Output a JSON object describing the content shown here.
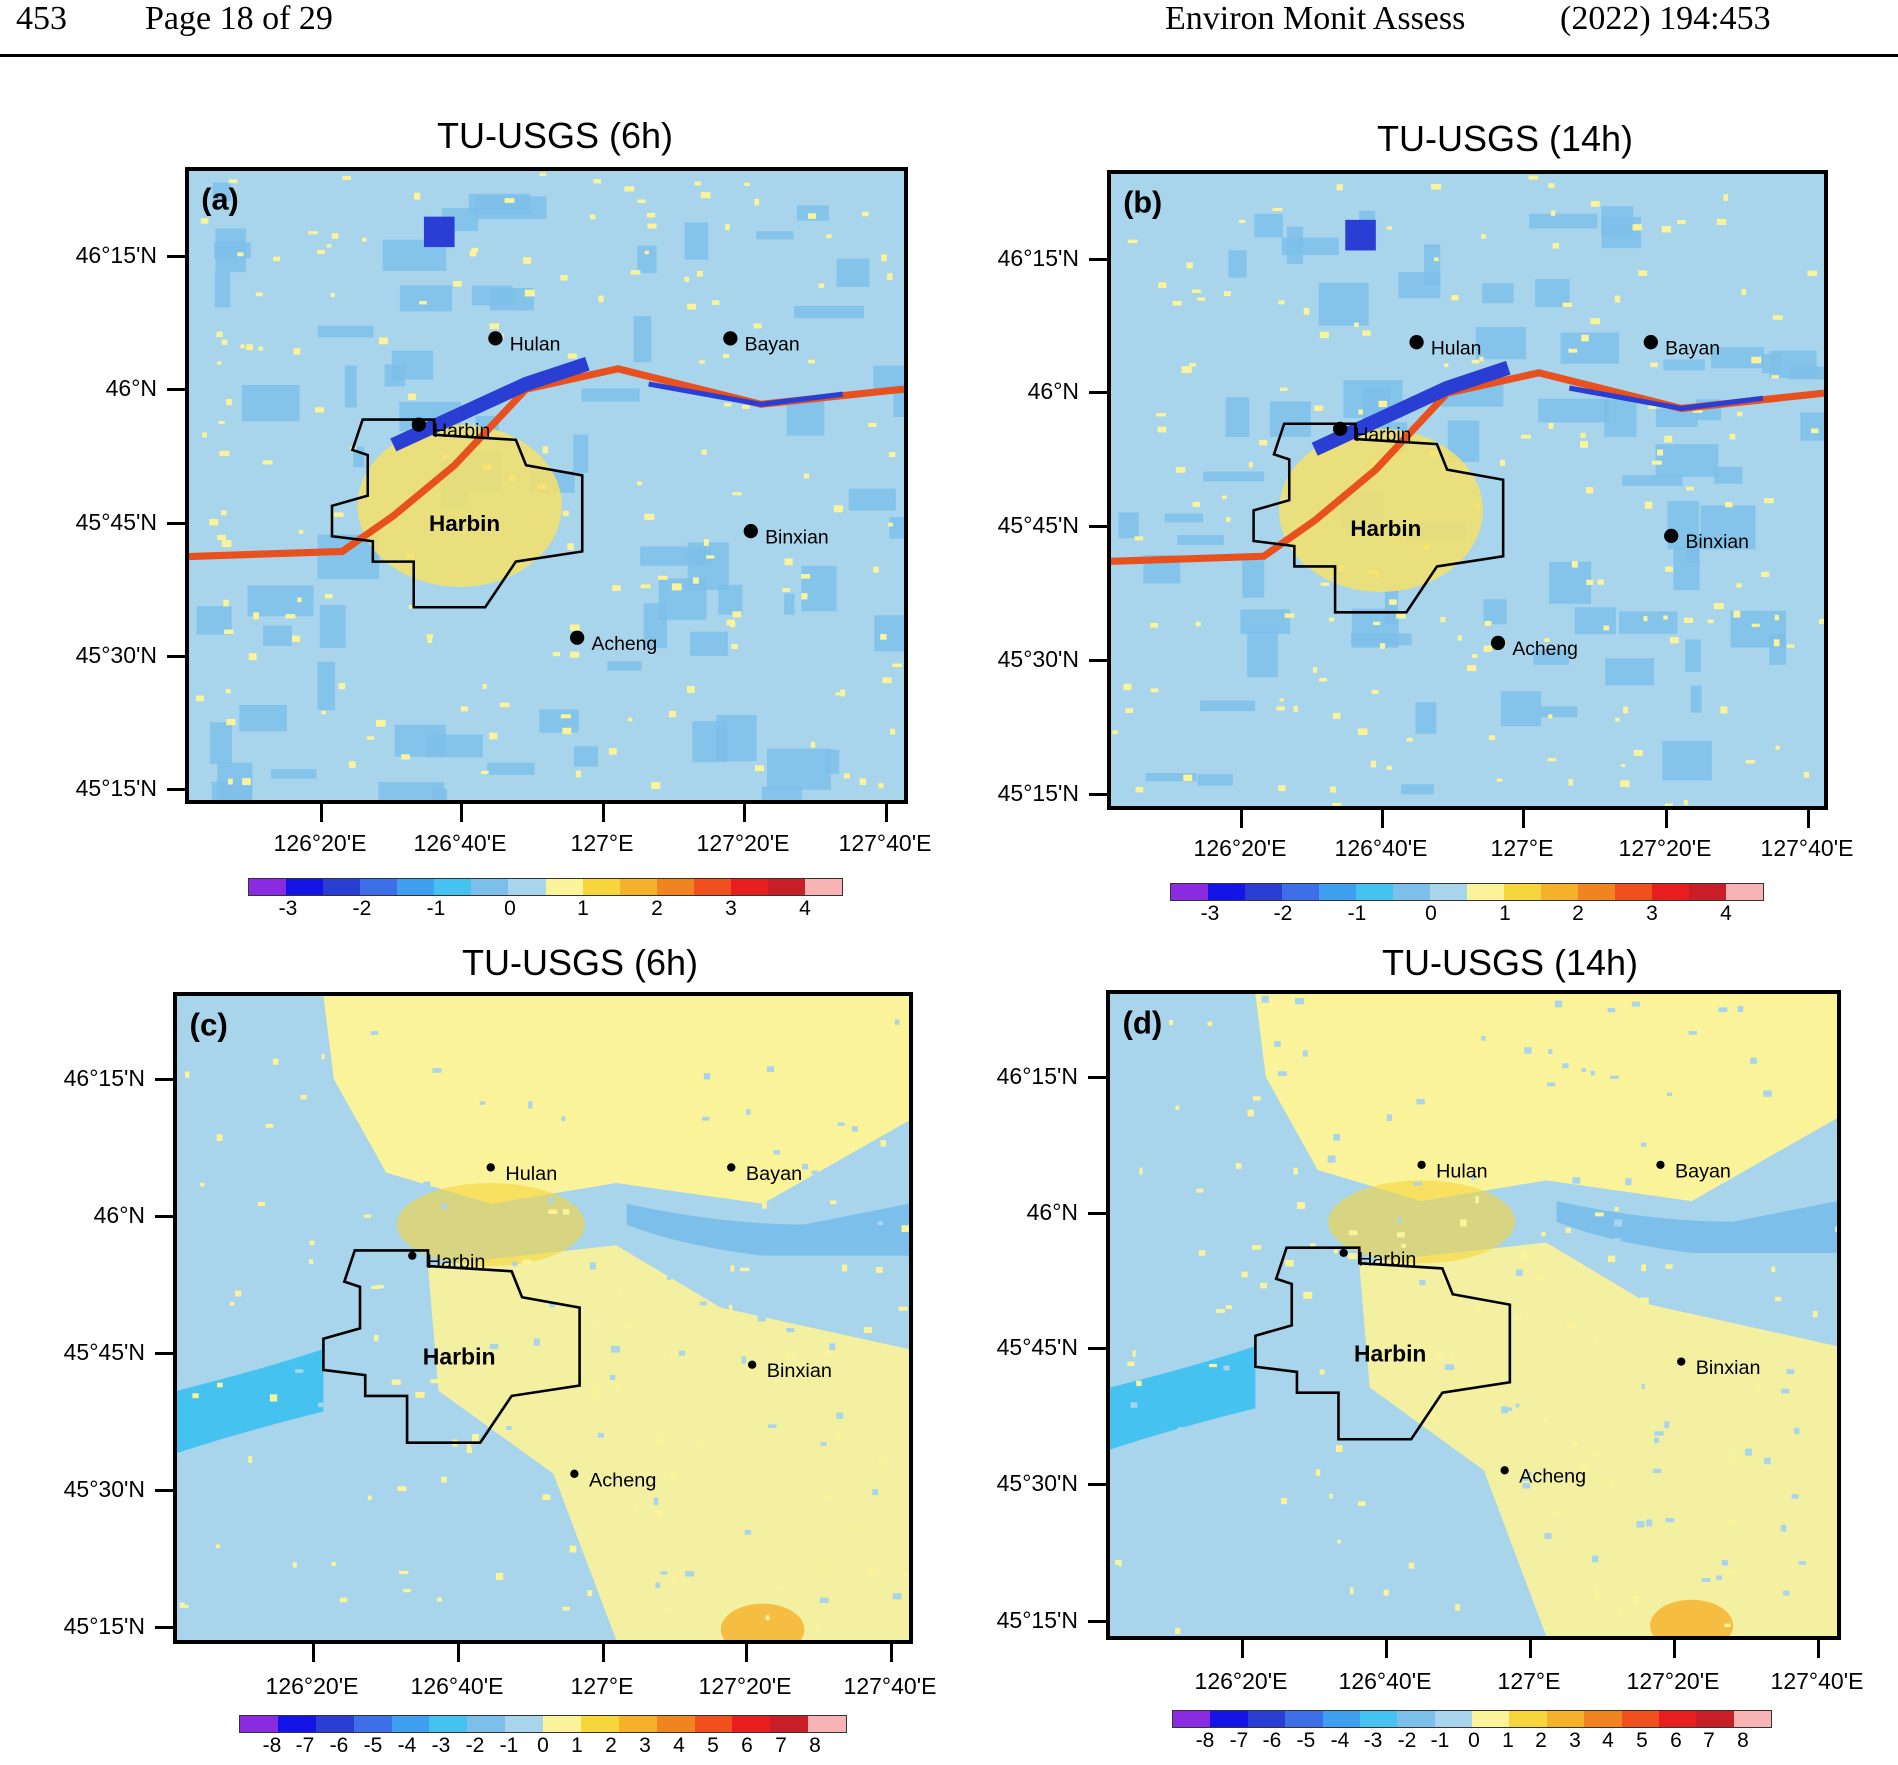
{
  "header": {
    "page_num": "453",
    "page_of": "Page 18 of 29",
    "journal": "Environ Monit Assess",
    "citation": "(2022) 194:453"
  },
  "colors": {
    "bg_light": "#a8d4ec",
    "bg_blue": "#7cbfea",
    "yellow": "#fbf39a"
  },
  "panels": [
    {
      "id": "a",
      "title": "TU-USGS (6h)",
      "label": "(a)"
    },
    {
      "id": "b",
      "title": "TU-USGS (14h)",
      "label": "(b)"
    },
    {
      "id": "c",
      "title": "TU-USGS (6h)",
      "label": "(c)"
    },
    {
      "id": "d",
      "title": "TU-USGS (14h)",
      "label": "(d)"
    }
  ],
  "y_axis": [
    "46°15'N",
    "46°N",
    "45°45'N",
    "45°30'N",
    "45°15'N"
  ],
  "x_axis": [
    "126°20'E",
    "126°40'E",
    "127°E",
    "127°20'E",
    "127°40'E"
  ],
  "places": {
    "hulan": "Hulan",
    "bayan": "Bayan",
    "harbin_city": "Harbin",
    "harbin_region": "Harbin",
    "binxian": "Binxian",
    "acheng": "Acheng"
  },
  "colorbar_top": {
    "colors": [
      "#8a2be2",
      "#1414e6",
      "#2a3ed4",
      "#3c6fe8",
      "#3ea0ee",
      "#46c2f0",
      "#7cbfea",
      "#a8d4ec",
      "#fbf39a",
      "#f6d63a",
      "#f5b12a",
      "#f08420",
      "#f0501e",
      "#e81e1e",
      "#c81e28",
      "#f8b4b4"
    ],
    "labels": [
      "-3",
      "-2",
      "-1",
      "0",
      "1",
      "2",
      "3",
      "4"
    ]
  },
  "colorbar_bottom": {
    "colors": [
      "#8a2be2",
      "#1414e6",
      "#2a3ed4",
      "#3c6fe8",
      "#3ea0ee",
      "#46c2f0",
      "#7cbfea",
      "#a8d4ec",
      "#fbf39a",
      "#f6d63a",
      "#f5b12a",
      "#f08420",
      "#f0501e",
      "#e81e1e",
      "#c81e28",
      "#f8b4b4"
    ],
    "labels": [
      "-8",
      "-7",
      "-6",
      "-5",
      "-4",
      "-3",
      "-2",
      "-1",
      "0",
      "1",
      "2",
      "3",
      "4",
      "5",
      "6",
      "7",
      "8"
    ]
  }
}
